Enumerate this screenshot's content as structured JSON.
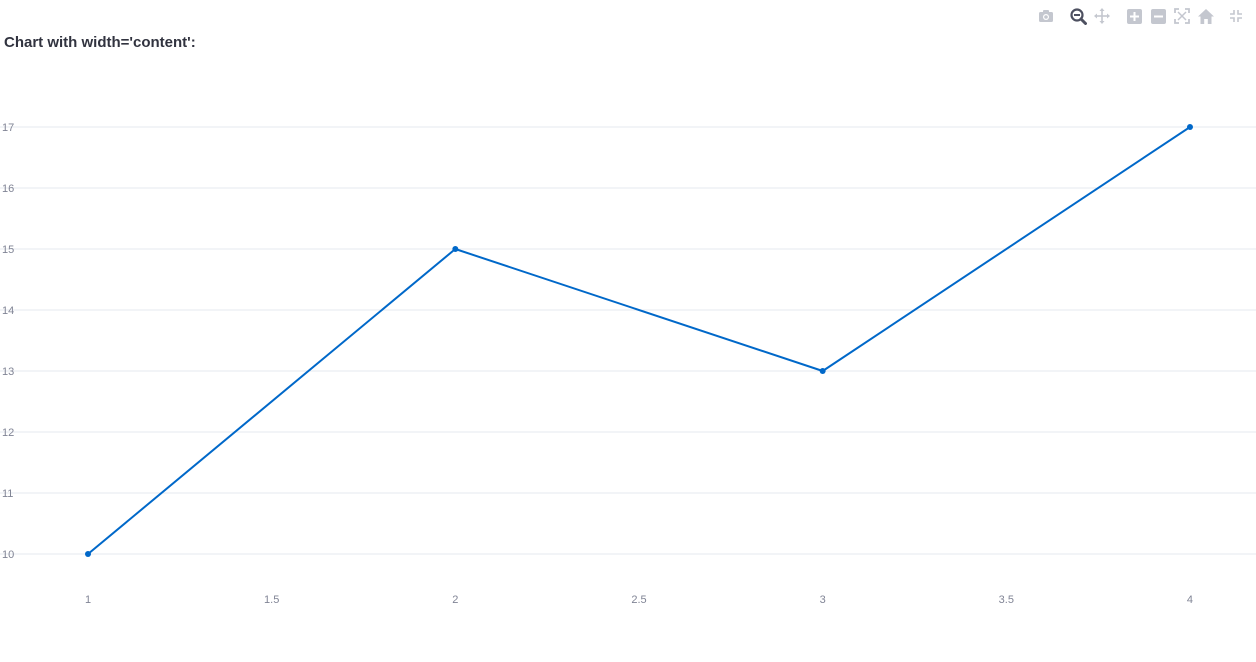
{
  "page": {
    "heading": "Chart with width='content':"
  },
  "modebar": {
    "buttons": [
      {
        "name": "camera-icon",
        "title": "Download plot as a png"
      },
      {
        "name": "zoom-icon",
        "title": "Zoom"
      },
      {
        "name": "pan-icon",
        "title": "Pan"
      },
      {
        "name": "zoom-in-icon",
        "title": "Zoom in"
      },
      {
        "name": "zoom-out-icon",
        "title": "Zoom out"
      },
      {
        "name": "autoscale-icon",
        "title": "Autoscale"
      },
      {
        "name": "home-icon",
        "title": "Reset axes"
      },
      {
        "name": "collapse-icon",
        "title": "Fullscreen"
      }
    ],
    "active": "zoom-icon"
  },
  "colors": {
    "line": "#0068c9",
    "grid": "#e6e9ef",
    "tick_text": "#808495",
    "title_text": "#31333f",
    "icon": "#c4c7cf",
    "icon_active": "#4d5060"
  },
  "chart_data": {
    "type": "line",
    "title": "",
    "xlabel": "",
    "ylabel": "",
    "x": [
      1,
      2,
      3,
      4
    ],
    "y": [
      10,
      15,
      13,
      17
    ],
    "xlim": [
      0.77,
      4.18
    ],
    "ylim": [
      9.55,
      17.72
    ],
    "x_ticks": [
      "1",
      "1.5",
      "2",
      "2.5",
      "3",
      "3.5",
      "4"
    ],
    "y_ticks": [
      "10",
      "11",
      "12",
      "13",
      "14",
      "15",
      "16",
      "17"
    ],
    "grid": "horizontal",
    "markers": true
  }
}
